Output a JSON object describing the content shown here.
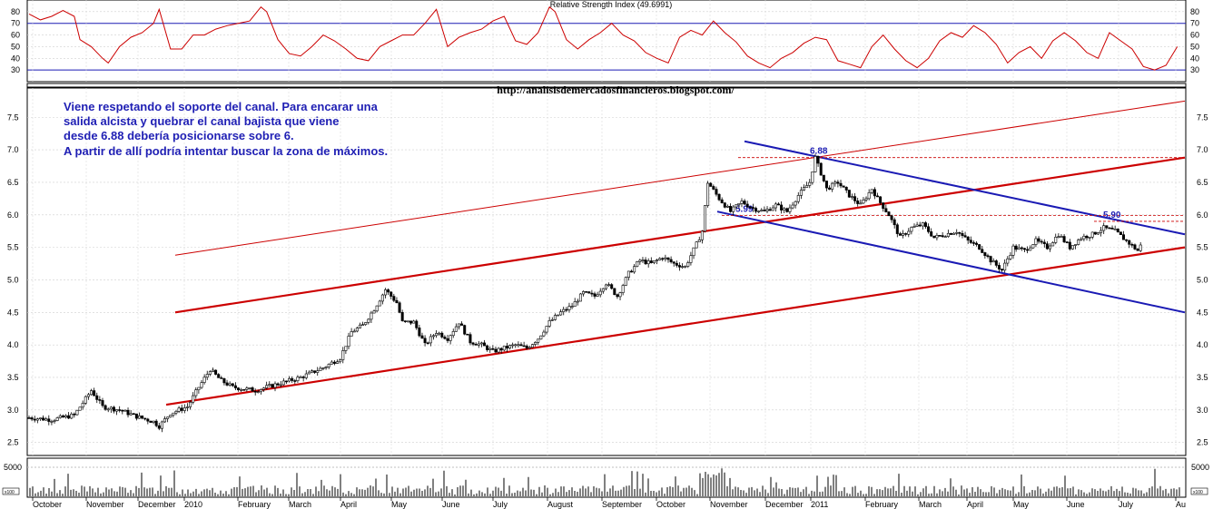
{
  "rsi_panel": {
    "title": "Relative Strength Index (49.6991)",
    "ticks": [
      "80",
      "70",
      "60",
      "50",
      "40",
      "30"
    ]
  },
  "url": "http://analisisdemercadosfinancieros.blogspot.com/",
  "annotation": [
    "Viene respetando el soporte del canal. Para encarar una",
    "salida alcista y quebrar el canal bajista que viene",
    "desde 6.88 debería posicionarse sobre 6.",
    "A partir de allí podría intentar buscar la zona de máximos."
  ],
  "volume_panel": {
    "tick": "5000",
    "left_mini": "x100",
    "right_mini": "x100"
  },
  "colors": {
    "price": "#000000",
    "rsi": "#cc0000",
    "channel_up": "#cc0000",
    "channel_down": "#1a1ab4",
    "level_line": "#cc0000",
    "rsi_ref": "#1a1ab4"
  },
  "chart_data": {
    "type": "candlestick",
    "x_months": [
      "October",
      "November",
      "December",
      "2010",
      "February",
      "March",
      "April",
      "May",
      "June",
      "July",
      "August",
      "September",
      "October",
      "November",
      "December",
      "2011",
      "February",
      "March",
      "April",
      "May",
      "June",
      "July",
      "Au"
    ],
    "y_ticks": [
      "7.5",
      "7.0",
      "6.5",
      "6.0",
      "5.5",
      "5.0",
      "4.5",
      "4.0",
      "3.5",
      "3.0",
      "2.5"
    ],
    "ylim": [
      2.3,
      7.95
    ],
    "price_path": [
      [
        0,
        2.88
      ],
      [
        4,
        2.85
      ],
      [
        8,
        2.92
      ],
      [
        11,
        3.3
      ],
      [
        13,
        3.05
      ],
      [
        16,
        3.0
      ],
      [
        19,
        2.9
      ],
      [
        22,
        2.82
      ],
      [
        23,
        2.75
      ],
      [
        25,
        2.95
      ],
      [
        28,
        3.05
      ],
      [
        30,
        3.35
      ],
      [
        32,
        3.62
      ],
      [
        34,
        3.45
      ],
      [
        36,
        3.35
      ],
      [
        40,
        3.3
      ],
      [
        44,
        3.4
      ],
      [
        48,
        3.5
      ],
      [
        52,
        3.65
      ],
      [
        55,
        3.8
      ],
      [
        57,
        4.2
      ],
      [
        59,
        4.3
      ],
      [
        61,
        4.55
      ],
      [
        63,
        4.85
      ],
      [
        65,
        4.65
      ],
      [
        66,
        4.35
      ],
      [
        68,
        4.35
      ],
      [
        70,
        4.0
      ],
      [
        72,
        4.2
      ],
      [
        74,
        4.1
      ],
      [
        76,
        4.35
      ],
      [
        78,
        4.05
      ],
      [
        80,
        4.0
      ],
      [
        82,
        3.9
      ],
      [
        84,
        3.95
      ],
      [
        86,
        4.0
      ],
      [
        88,
        3.95
      ],
      [
        90,
        4.1
      ],
      [
        92,
        4.35
      ],
      [
        94,
        4.5
      ],
      [
        96,
        4.6
      ],
      [
        98,
        4.8
      ],
      [
        100,
        4.75
      ],
      [
        102,
        4.95
      ],
      [
        104,
        4.75
      ],
      [
        106,
        5.1
      ],
      [
        108,
        5.3
      ],
      [
        110,
        5.25
      ],
      [
        112,
        5.35
      ],
      [
        114,
        5.25
      ],
      [
        116,
        5.2
      ],
      [
        118,
        5.55
      ],
      [
        119,
        5.75
      ],
      [
        120,
        6.5
      ],
      [
        122,
        6.25
      ],
      [
        124,
        6.05
      ],
      [
        126,
        6.2
      ],
      [
        128,
        6.1
      ],
      [
        130,
        6.05
      ],
      [
        132,
        6.15
      ],
      [
        134,
        6.05
      ],
      [
        136,
        6.3
      ],
      [
        138,
        6.5
      ],
      [
        139,
        6.88
      ],
      [
        141,
        6.4
      ],
      [
        143,
        6.5
      ],
      [
        145,
        6.3
      ],
      [
        147,
        6.15
      ],
      [
        149,
        6.4
      ],
      [
        150,
        6.25
      ],
      [
        152,
        6.0
      ],
      [
        154,
        5.65
      ],
      [
        156,
        5.8
      ],
      [
        158,
        5.85
      ],
      [
        160,
        5.65
      ],
      [
        162,
        5.7
      ],
      [
        164,
        5.75
      ],
      [
        166,
        5.6
      ],
      [
        168,
        5.5
      ],
      [
        170,
        5.3
      ],
      [
        172,
        5.15
      ],
      [
        174,
        5.5
      ],
      [
        176,
        5.45
      ],
      [
        178,
        5.6
      ],
      [
        180,
        5.5
      ],
      [
        182,
        5.7
      ],
      [
        184,
        5.5
      ],
      [
        186,
        5.65
      ],
      [
        188,
        5.7
      ],
      [
        190,
        5.8
      ],
      [
        192,
        5.75
      ],
      [
        194,
        5.6
      ],
      [
        196,
        5.45
      ],
      [
        197,
        5.6
      ]
    ],
    "rsi_path": [
      [
        0,
        78
      ],
      [
        2,
        73
      ],
      [
        4,
        76
      ],
      [
        6,
        81
      ],
      [
        8,
        76
      ],
      [
        9,
        56
      ],
      [
        11,
        50
      ],
      [
        13,
        40
      ],
      [
        14,
        36
      ],
      [
        16,
        50
      ],
      [
        18,
        58
      ],
      [
        20,
        62
      ],
      [
        22,
        70
      ],
      [
        23,
        82
      ],
      [
        25,
        48
      ],
      [
        27,
        48
      ],
      [
        29,
        60
      ],
      [
        31,
        60
      ],
      [
        33,
        65
      ],
      [
        35,
        68
      ],
      [
        37,
        70
      ],
      [
        39,
        72
      ],
      [
        41,
        84
      ],
      [
        42,
        80
      ],
      [
        44,
        56
      ],
      [
        46,
        44
      ],
      [
        48,
        42
      ],
      [
        50,
        50
      ],
      [
        52,
        60
      ],
      [
        54,
        55
      ],
      [
        56,
        48
      ],
      [
        58,
        40
      ],
      [
        60,
        38
      ],
      [
        62,
        50
      ],
      [
        64,
        55
      ],
      [
        66,
        60
      ],
      [
        68,
        60
      ],
      [
        70,
        70
      ],
      [
        72,
        82
      ],
      [
        74,
        50
      ],
      [
        76,
        58
      ],
      [
        78,
        62
      ],
      [
        80,
        65
      ],
      [
        82,
        72
      ],
      [
        84,
        76
      ],
      [
        86,
        55
      ],
      [
        88,
        52
      ],
      [
        90,
        62
      ],
      [
        92,
        84
      ],
      [
        93,
        80
      ],
      [
        95,
        56
      ],
      [
        97,
        48
      ],
      [
        99,
        56
      ],
      [
        101,
        62
      ],
      [
        103,
        70
      ],
      [
        105,
        60
      ],
      [
        107,
        55
      ],
      [
        109,
        45
      ],
      [
        111,
        40
      ],
      [
        113,
        36
      ],
      [
        115,
        58
      ],
      [
        117,
        64
      ],
      [
        119,
        60
      ],
      [
        121,
        72
      ],
      [
        123,
        62
      ],
      [
        125,
        54
      ],
      [
        127,
        42
      ],
      [
        129,
        36
      ],
      [
        131,
        32
      ],
      [
        133,
        40
      ],
      [
        135,
        45
      ],
      [
        137,
        53
      ],
      [
        139,
        58
      ],
      [
        141,
        56
      ],
      [
        143,
        38
      ],
      [
        145,
        35
      ],
      [
        147,
        32
      ],
      [
        149,
        50
      ],
      [
        151,
        60
      ],
      [
        153,
        48
      ],
      [
        155,
        38
      ],
      [
        157,
        32
      ],
      [
        159,
        40
      ],
      [
        161,
        55
      ],
      [
        163,
        62
      ],
      [
        165,
        58
      ],
      [
        167,
        68
      ],
      [
        169,
        62
      ],
      [
        171,
        52
      ],
      [
        173,
        36
      ],
      [
        175,
        45
      ],
      [
        177,
        50
      ],
      [
        179,
        40
      ],
      [
        181,
        55
      ],
      [
        183,
        62
      ],
      [
        185,
        55
      ],
      [
        187,
        45
      ],
      [
        189,
        40
      ],
      [
        191,
        62
      ],
      [
        193,
        55
      ],
      [
        195,
        48
      ],
      [
        197,
        33
      ],
      [
        199,
        30
      ],
      [
        201,
        34
      ],
      [
        203,
        50
      ]
    ],
    "channel_up": {
      "lower": [
        [
          183,
          3.08
        ],
        [
          1305,
          5.5
        ]
      ],
      "middle": [
        [
          193,
          4.5
        ],
        [
          1305,
          6.88
        ]
      ],
      "upper": [
        [
          193,
          5.38
        ],
        [
          1305,
          7.75
        ]
      ]
    },
    "channel_down": {
      "upper": [
        [
          820,
          7.13
        ],
        [
          1305,
          5.7
        ]
      ],
      "lower": [
        [
          790,
          6.05
        ],
        [
          1305,
          4.5
        ]
      ]
    },
    "levels": [
      {
        "label": "6.88",
        "value": 6.88,
        "from": 813,
        "to": 1305,
        "label_x": 892
      },
      {
        "label": "5.99",
        "value": 5.99,
        "from": 795,
        "to": 1305,
        "label_x": 810
      },
      {
        "label": "5.90",
        "value": 5.9,
        "from": 1205,
        "to": 1305,
        "label_x": 1215
      }
    ]
  }
}
